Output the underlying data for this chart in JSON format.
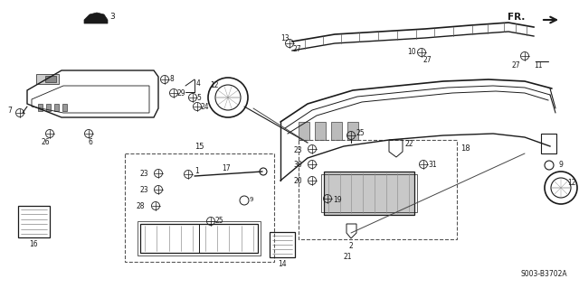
{
  "bg_color": "#ffffff",
  "diagram_code": "S003-B3702A",
  "fig_width": 6.4,
  "fig_height": 3.19,
  "dpi": 100
}
